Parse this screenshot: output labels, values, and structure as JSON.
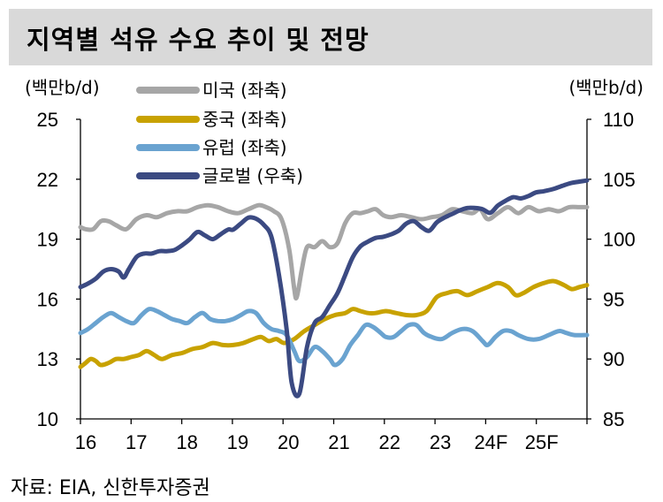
{
  "title": "지역별 석유 수요 추이 및 전망",
  "source": "자료: EIA, 신한투자증권",
  "chart_data": {
    "type": "line",
    "left_axis": {
      "unit": "(백만b/d)",
      "ylim": [
        10,
        25
      ],
      "ticks": [
        "25",
        "22",
        "19",
        "16",
        "13",
        "10"
      ]
    },
    "right_axis": {
      "unit": "(백만b/d)",
      "ylim": [
        85,
        110
      ],
      "ticks": [
        "110",
        "105",
        "100",
        "95",
        "90",
        "85"
      ]
    },
    "x_ticks": [
      "16",
      "17",
      "18",
      "19",
      "20",
      "21",
      "22",
      "23",
      "24F",
      "25F"
    ],
    "x_range": [
      2016,
      2025.95
    ],
    "grid": false,
    "series": [
      {
        "name": "미국 (좌축)",
        "axis": "left",
        "color": "#a6a6a6",
        "points": [
          [
            2016.0,
            19.6
          ],
          [
            2016.1,
            19.5
          ],
          [
            2016.25,
            19.5
          ],
          [
            2016.4,
            19.9
          ],
          [
            2016.55,
            19.9
          ],
          [
            2016.7,
            19.7
          ],
          [
            2016.9,
            19.5
          ],
          [
            2017.1,
            20.0
          ],
          [
            2017.3,
            20.2
          ],
          [
            2017.5,
            20.1
          ],
          [
            2017.7,
            20.3
          ],
          [
            2017.9,
            20.4
          ],
          [
            2018.1,
            20.4
          ],
          [
            2018.3,
            20.6
          ],
          [
            2018.5,
            20.7
          ],
          [
            2018.7,
            20.6
          ],
          [
            2018.9,
            20.4
          ],
          [
            2019.1,
            20.3
          ],
          [
            2019.3,
            20.5
          ],
          [
            2019.5,
            20.7
          ],
          [
            2019.65,
            20.6
          ],
          [
            2019.8,
            20.4
          ],
          [
            2019.95,
            20.0
          ],
          [
            2020.1,
            18.5
          ],
          [
            2020.2,
            16.5
          ],
          [
            2020.25,
            16.1
          ],
          [
            2020.35,
            17.5
          ],
          [
            2020.45,
            18.6
          ],
          [
            2020.6,
            18.6
          ],
          [
            2020.75,
            18.9
          ],
          [
            2020.9,
            18.6
          ],
          [
            2021.05,
            18.8
          ],
          [
            2021.2,
            19.8
          ],
          [
            2021.35,
            20.3
          ],
          [
            2021.5,
            20.3
          ],
          [
            2021.65,
            20.4
          ],
          [
            2021.8,
            20.5
          ],
          [
            2021.95,
            20.2
          ],
          [
            2022.1,
            20.1
          ],
          [
            2022.3,
            20.2
          ],
          [
            2022.5,
            20.1
          ],
          [
            2022.7,
            20.0
          ],
          [
            2022.9,
            20.1
          ],
          [
            2023.1,
            20.2
          ],
          [
            2023.3,
            20.5
          ],
          [
            2023.5,
            20.4
          ],
          [
            2023.7,
            20.3
          ],
          [
            2023.85,
            20.5
          ],
          [
            2024.0,
            20.0
          ],
          [
            2024.2,
            20.3
          ],
          [
            2024.4,
            20.6
          ],
          [
            2024.6,
            20.3
          ],
          [
            2024.8,
            20.6
          ],
          [
            2025.0,
            20.4
          ],
          [
            2025.2,
            20.5
          ],
          [
            2025.4,
            20.4
          ],
          [
            2025.6,
            20.6
          ],
          [
            2025.8,
            20.6
          ],
          [
            2025.95,
            20.6
          ]
        ]
      },
      {
        "name": "중국 (좌축)",
        "axis": "left",
        "color": "#c8a200",
        "points": [
          [
            2016.0,
            12.6
          ],
          [
            2016.1,
            12.8
          ],
          [
            2016.2,
            13.0
          ],
          [
            2016.3,
            12.9
          ],
          [
            2016.4,
            12.7
          ],
          [
            2016.55,
            12.8
          ],
          [
            2016.7,
            13.0
          ],
          [
            2016.85,
            13.0
          ],
          [
            2017.0,
            13.1
          ],
          [
            2017.15,
            13.2
          ],
          [
            2017.3,
            13.4
          ],
          [
            2017.45,
            13.2
          ],
          [
            2017.6,
            13.0
          ],
          [
            2017.8,
            13.2
          ],
          [
            2018.0,
            13.3
          ],
          [
            2018.2,
            13.5
          ],
          [
            2018.4,
            13.6
          ],
          [
            2018.6,
            13.8
          ],
          [
            2018.8,
            13.7
          ],
          [
            2019.0,
            13.7
          ],
          [
            2019.2,
            13.8
          ],
          [
            2019.4,
            14.0
          ],
          [
            2019.55,
            14.1
          ],
          [
            2019.7,
            13.9
          ],
          [
            2019.85,
            14.0
          ],
          [
            2020.0,
            13.8
          ],
          [
            2020.2,
            14.0
          ],
          [
            2020.4,
            14.4
          ],
          [
            2020.6,
            14.7
          ],
          [
            2020.8,
            15.0
          ],
          [
            2021.0,
            15.2
          ],
          [
            2021.2,
            15.3
          ],
          [
            2021.35,
            15.5
          ],
          [
            2021.5,
            15.4
          ],
          [
            2021.65,
            15.3
          ],
          [
            2021.8,
            15.3
          ],
          [
            2022.0,
            15.4
          ],
          [
            2022.2,
            15.3
          ],
          [
            2022.4,
            15.2
          ],
          [
            2022.6,
            15.2
          ],
          [
            2022.8,
            15.4
          ],
          [
            2023.0,
            16.1
          ],
          [
            2023.2,
            16.3
          ],
          [
            2023.4,
            16.4
          ],
          [
            2023.6,
            16.2
          ],
          [
            2023.8,
            16.4
          ],
          [
            2024.0,
            16.6
          ],
          [
            2024.2,
            16.8
          ],
          [
            2024.4,
            16.6
          ],
          [
            2024.55,
            16.2
          ],
          [
            2024.7,
            16.3
          ],
          [
            2024.9,
            16.6
          ],
          [
            2025.1,
            16.8
          ],
          [
            2025.3,
            16.9
          ],
          [
            2025.5,
            16.7
          ],
          [
            2025.65,
            16.5
          ],
          [
            2025.8,
            16.6
          ],
          [
            2025.95,
            16.7
          ]
        ]
      },
      {
        "name": "유럽 (좌축)",
        "axis": "left",
        "color": "#6aa3d0",
        "points": [
          [
            2016.0,
            14.3
          ],
          [
            2016.15,
            14.5
          ],
          [
            2016.3,
            14.8
          ],
          [
            2016.45,
            15.1
          ],
          [
            2016.6,
            15.3
          ],
          [
            2016.75,
            15.1
          ],
          [
            2016.9,
            14.9
          ],
          [
            2017.05,
            14.8
          ],
          [
            2017.2,
            15.2
          ],
          [
            2017.35,
            15.5
          ],
          [
            2017.5,
            15.4
          ],
          [
            2017.65,
            15.2
          ],
          [
            2017.8,
            15.0
          ],
          [
            2017.95,
            14.9
          ],
          [
            2018.1,
            14.8
          ],
          [
            2018.25,
            15.1
          ],
          [
            2018.4,
            15.3
          ],
          [
            2018.55,
            15.0
          ],
          [
            2018.7,
            14.9
          ],
          [
            2018.85,
            14.9
          ],
          [
            2019.0,
            15.0
          ],
          [
            2019.15,
            15.2
          ],
          [
            2019.3,
            15.4
          ],
          [
            2019.45,
            15.3
          ],
          [
            2019.6,
            14.8
          ],
          [
            2019.75,
            14.5
          ],
          [
            2019.9,
            14.4
          ],
          [
            2020.05,
            14.2
          ],
          [
            2020.2,
            13.4
          ],
          [
            2020.3,
            12.9
          ],
          [
            2020.45,
            13.1
          ],
          [
            2020.6,
            13.6
          ],
          [
            2020.75,
            13.4
          ],
          [
            2020.9,
            13.0
          ],
          [
            2021.0,
            12.7
          ],
          [
            2021.15,
            13.0
          ],
          [
            2021.3,
            13.7
          ],
          [
            2021.45,
            14.2
          ],
          [
            2021.6,
            14.7
          ],
          [
            2021.75,
            14.6
          ],
          [
            2021.9,
            14.3
          ],
          [
            2022.0,
            14.1
          ],
          [
            2022.15,
            14.1
          ],
          [
            2022.3,
            14.4
          ],
          [
            2022.45,
            14.7
          ],
          [
            2022.6,
            14.7
          ],
          [
            2022.75,
            14.3
          ],
          [
            2022.9,
            14.1
          ],
          [
            2023.1,
            14.0
          ],
          [
            2023.3,
            14.3
          ],
          [
            2023.5,
            14.5
          ],
          [
            2023.7,
            14.4
          ],
          [
            2023.9,
            13.9
          ],
          [
            2024.0,
            13.7
          ],
          [
            2024.15,
            14.1
          ],
          [
            2024.3,
            14.4
          ],
          [
            2024.45,
            14.4
          ],
          [
            2024.6,
            14.2
          ],
          [
            2024.8,
            14.0
          ],
          [
            2025.0,
            14.0
          ],
          [
            2025.2,
            14.2
          ],
          [
            2025.4,
            14.4
          ],
          [
            2025.55,
            14.3
          ],
          [
            2025.7,
            14.2
          ],
          [
            2025.95,
            14.2
          ]
        ]
      },
      {
        "name": "글로벌 (우축)",
        "axis": "right",
        "color": "#3b4a82",
        "points": [
          [
            2016.0,
            96.0
          ],
          [
            2016.15,
            96.3
          ],
          [
            2016.3,
            96.7
          ],
          [
            2016.45,
            97.3
          ],
          [
            2016.6,
            97.5
          ],
          [
            2016.75,
            97.3
          ],
          [
            2016.85,
            96.8
          ],
          [
            2016.95,
            97.5
          ],
          [
            2017.1,
            98.5
          ],
          [
            2017.25,
            98.8
          ],
          [
            2017.4,
            98.8
          ],
          [
            2017.55,
            99.0
          ],
          [
            2017.7,
            99.0
          ],
          [
            2017.85,
            99.1
          ],
          [
            2018.0,
            99.5
          ],
          [
            2018.15,
            100.0
          ],
          [
            2018.3,
            100.6
          ],
          [
            2018.45,
            100.3
          ],
          [
            2018.6,
            100.0
          ],
          [
            2018.75,
            100.4
          ],
          [
            2018.9,
            100.8
          ],
          [
            2019.0,
            100.8
          ],
          [
            2019.15,
            101.3
          ],
          [
            2019.3,
            101.8
          ],
          [
            2019.45,
            101.7
          ],
          [
            2019.6,
            101.2
          ],
          [
            2019.75,
            100.2
          ],
          [
            2019.9,
            97.0
          ],
          [
            2020.05,
            92.5
          ],
          [
            2020.15,
            88.0
          ],
          [
            2020.3,
            87.1
          ],
          [
            2020.45,
            91.0
          ],
          [
            2020.6,
            93.0
          ],
          [
            2020.75,
            93.5
          ],
          [
            2020.9,
            94.5
          ],
          [
            2021.05,
            95.5
          ],
          [
            2021.2,
            97.0
          ],
          [
            2021.35,
            98.5
          ],
          [
            2021.5,
            99.4
          ],
          [
            2021.65,
            99.8
          ],
          [
            2021.8,
            100.1
          ],
          [
            2021.95,
            100.2
          ],
          [
            2022.1,
            100.4
          ],
          [
            2022.25,
            100.7
          ],
          [
            2022.4,
            101.3
          ],
          [
            2022.55,
            101.5
          ],
          [
            2022.7,
            101.0
          ],
          [
            2022.85,
            100.7
          ],
          [
            2023.0,
            101.4
          ],
          [
            2023.15,
            101.8
          ],
          [
            2023.3,
            102.1
          ],
          [
            2023.45,
            102.4
          ],
          [
            2023.6,
            102.6
          ],
          [
            2023.75,
            102.6
          ],
          [
            2023.9,
            102.5
          ],
          [
            2024.05,
            102.2
          ],
          [
            2024.2,
            102.8
          ],
          [
            2024.35,
            103.2
          ],
          [
            2024.5,
            103.5
          ],
          [
            2024.65,
            103.4
          ],
          [
            2024.8,
            103.6
          ],
          [
            2024.95,
            103.9
          ],
          [
            2025.1,
            104.0
          ],
          [
            2025.3,
            104.2
          ],
          [
            2025.5,
            104.5
          ],
          [
            2025.65,
            104.7
          ],
          [
            2025.8,
            104.8
          ],
          [
            2025.95,
            104.9
          ]
        ]
      }
    ]
  }
}
